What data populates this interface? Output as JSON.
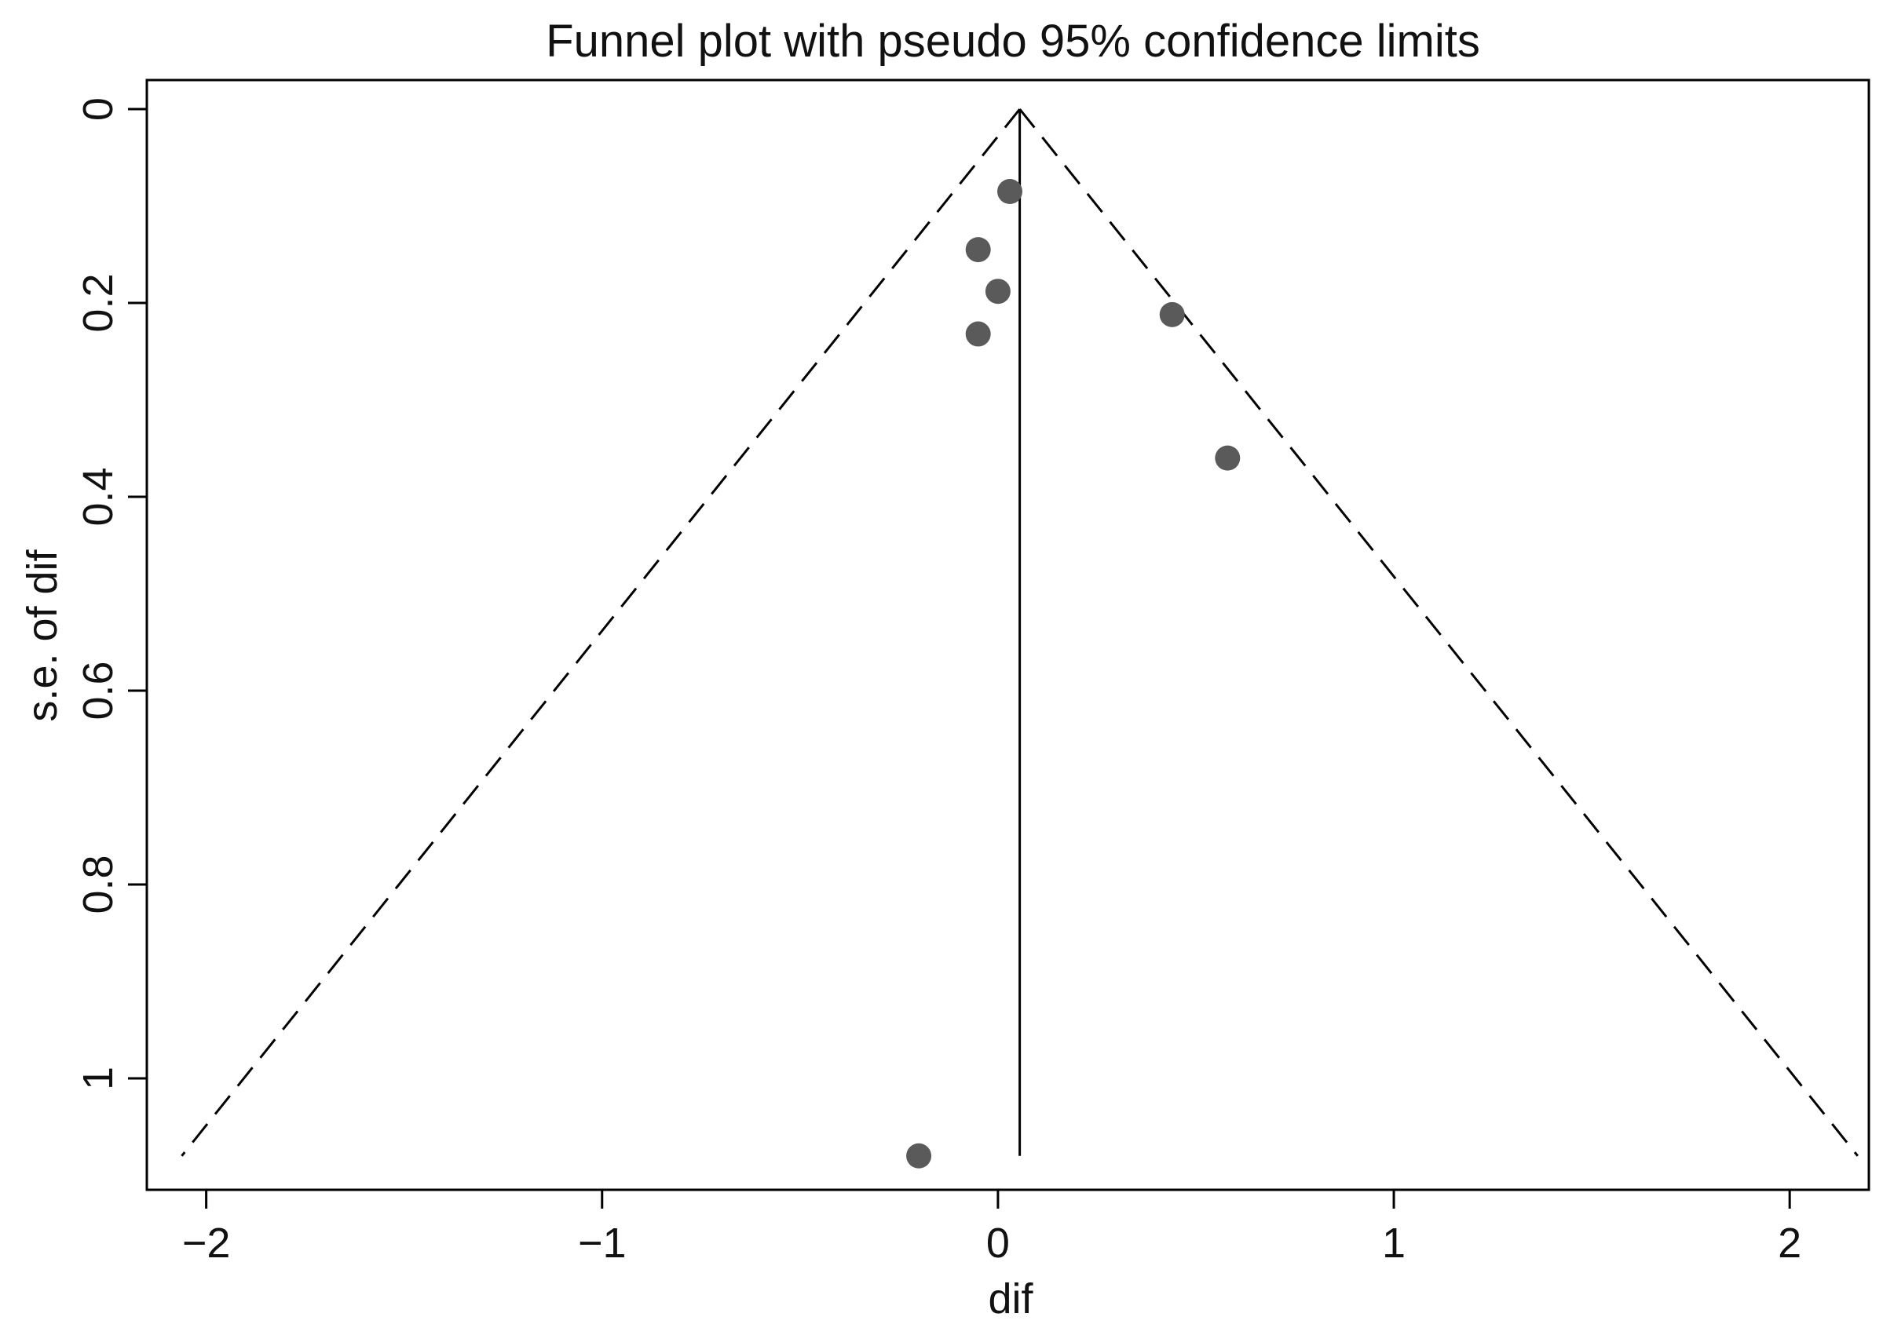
{
  "chart_data": {
    "type": "scatter",
    "title": "Funnel plot with pseudo 95% confidence limits",
    "xlabel": "dif",
    "ylabel": "s.e. of dif",
    "xlim": [
      -2.15,
      2.2
    ],
    "ylim": [
      1.115,
      -0.03
    ],
    "y_reversed": true,
    "grid": false,
    "x_ticks": [
      -2,
      -1,
      0,
      1,
      2
    ],
    "y_ticks": [
      0,
      0.2,
      0.4,
      0.6,
      0.8,
      1
    ],
    "x_tick_labels": [
      "−2",
      "−1",
      "0",
      "1",
      "2"
    ],
    "y_tick_labels": [
      "0",
      "0.2",
      "0.4",
      "0.6",
      "0.8",
      "1"
    ],
    "points": [
      {
        "x": 0.03,
        "y": 0.085
      },
      {
        "x": -0.05,
        "y": 0.145
      },
      {
        "x": 0.0,
        "y": 0.188
      },
      {
        "x": -0.05,
        "y": 0.232
      },
      {
        "x": 0.44,
        "y": 0.212
      },
      {
        "x": 0.58,
        "y": 0.36
      },
      {
        "x": -0.2,
        "y": 1.08
      }
    ],
    "pooled_estimate": 0.055,
    "ci_multiplier": 1.96,
    "se_max": 1.08,
    "colors": {
      "points": "#5a5a5a",
      "lines": "#000000"
    }
  }
}
